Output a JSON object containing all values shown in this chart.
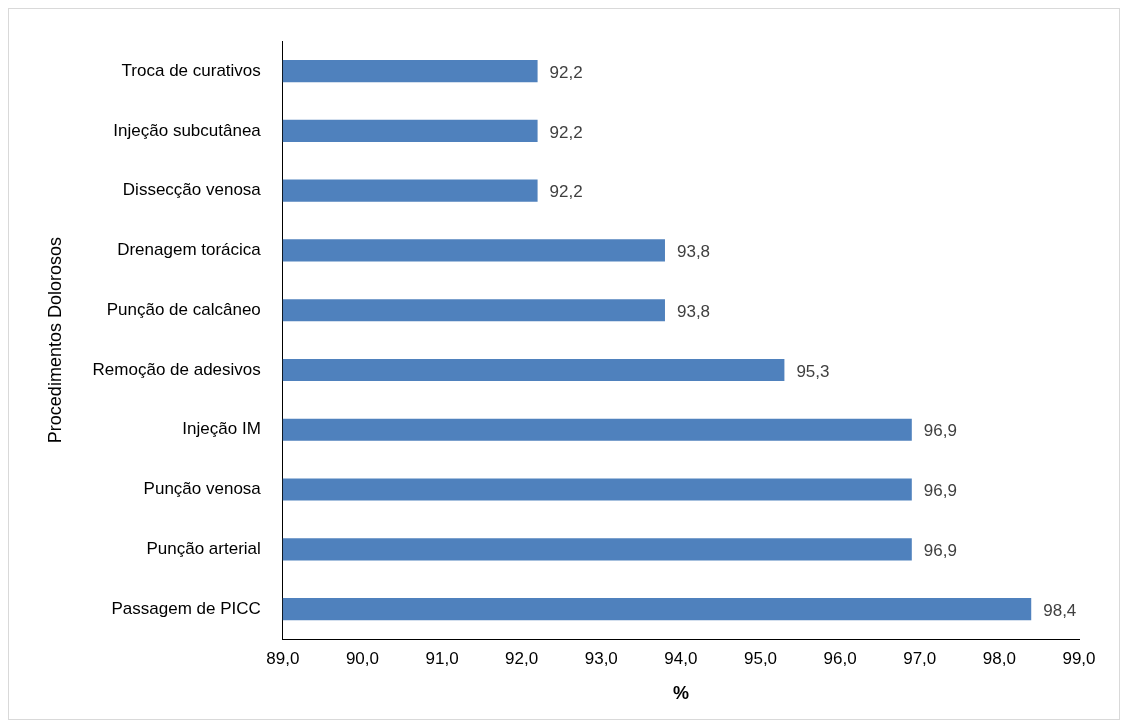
{
  "chart_data": {
    "type": "bar",
    "orientation": "horizontal",
    "xlabel": "%",
    "ylabel": "Procedimentos Dolorosos",
    "categories": [
      "Troca de curativos",
      "Injeção subcutânea",
      "Dissecção venosa",
      "Drenagem torácica",
      "Punção de calcâneo",
      "Remoção de adesivos",
      "Injeção IM",
      "Punção venosa",
      "Punção arterial",
      "Passagem de PICC"
    ],
    "values": [
      92.2,
      92.2,
      92.2,
      93.8,
      93.8,
      95.3,
      96.9,
      96.9,
      96.9,
      98.4
    ],
    "value_labels": [
      "92,2",
      "92,2",
      "92,2",
      "93,8",
      "93,8",
      "95,3",
      "96,9",
      "96,9",
      "96,9",
      "98,4"
    ],
    "color": "#4f81bd",
    "xlim": [
      89,
      99
    ],
    "xticks": [
      {
        "value": 89,
        "label": "89,0"
      },
      {
        "value": 90,
        "label": "90,0"
      },
      {
        "value": 91,
        "label": "91,0"
      },
      {
        "value": 92,
        "label": "92,0"
      },
      {
        "value": 93,
        "label": "93,0"
      },
      {
        "value": 94,
        "label": "94,0"
      },
      {
        "value": 95,
        "label": "95,0"
      },
      {
        "value": 96,
        "label": "96,0"
      },
      {
        "value": 97,
        "label": "97,0"
      },
      {
        "value": 98,
        "label": "98,0"
      },
      {
        "value": 99,
        "label": "99,0"
      }
    ],
    "grid": false,
    "legend": false
  }
}
